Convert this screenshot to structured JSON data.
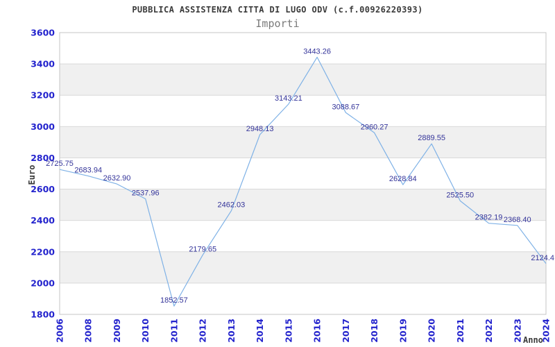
{
  "header": {
    "title": "PUBBLICA ASSISTENZA CITTA DI LUGO ODV (c.f.00926220393)",
    "subtitle": "Importi"
  },
  "axes": {
    "y_title": "Euro",
    "x_title": "Anno"
  },
  "chart_data": {
    "type": "line",
    "title": "Importi",
    "xlabel": "Anno",
    "ylabel": "Euro",
    "categories": [
      "2006",
      "2008",
      "2009",
      "2010",
      "2011",
      "2012",
      "2013",
      "2014",
      "2015",
      "2016",
      "2017",
      "2018",
      "2019",
      "2020",
      "2021",
      "2022",
      "2023",
      "2024"
    ],
    "values": [
      2725.75,
      2683.94,
      2632.9,
      2537.96,
      1852.57,
      2179.65,
      2462.03,
      2948.13,
      3143.21,
      3443.26,
      3088.67,
      2960.27,
      2628.84,
      2889.55,
      2525.5,
      2382.19,
      2368.4,
      2124.4
    ],
    "point_labels": [
      "2725.75",
      "2683.94",
      "2632.90",
      "2537.96",
      "1852.57",
      "2179.65",
      "2462.03",
      "2948.13",
      "3143.21",
      "3443.26",
      "3088.67",
      "2960.27",
      "2628.84",
      "2889.55",
      "2525.50",
      "2382.19",
      "2368.40",
      "2124.4"
    ],
    "ylim": [
      1800,
      3600
    ],
    "y_tick_step": 200,
    "y_tick_labels": [
      "1800",
      "2000",
      "2200",
      "2400",
      "2600",
      "2800",
      "3000",
      "3200",
      "3400",
      "3600"
    ],
    "grid": true,
    "legend": false,
    "band_fill_alternating": true,
    "colors": {
      "line": "#7eb1e6",
      "tick_label": "#2323cd",
      "data_label": "#333399",
      "band_gray": "#f0f0f0",
      "gridline": "#d9d9d9",
      "plot_border": "#c6c6c6",
      "background": "#ffffff"
    }
  }
}
